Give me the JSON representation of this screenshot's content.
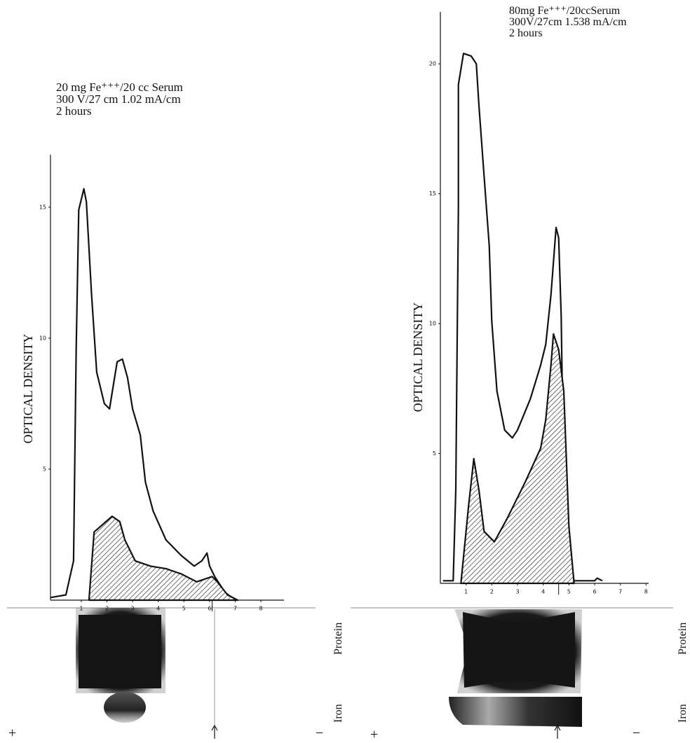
{
  "chart_data": [
    {
      "type": "line",
      "notes": [
        "20 mg Fe⁺⁺⁺/20 cc Serum",
        "300 V/27 cm 1.02 mA/cm",
        "2 hours"
      ],
      "ylabel": "OPTICAL DENSITY",
      "xlim": [
        -0.2,
        8.9
      ],
      "ylim": [
        0,
        17
      ],
      "xticks": [
        1,
        2,
        3,
        4,
        5,
        6,
        7,
        8
      ],
      "yticks": [
        5,
        10,
        15
      ],
      "origin_marker": 6.1,
      "series": [
        {
          "color": "#111111",
          "fill": "none",
          "x": [
            -0.2,
            0.4,
            0.7,
            0.8,
            0.9,
            1.1,
            1.2,
            1.4,
            1.6,
            1.9,
            2.1,
            2.2,
            2.4,
            2.6,
            2.8,
            3.0,
            3.3,
            3.5,
            3.8,
            4.3,
            4.9,
            5.4,
            5.7,
            5.9,
            6.0,
            6.2,
            6.6,
            7.0
          ],
          "values": [
            0.1,
            0.2,
            1.5,
            9.5,
            14.9,
            15.7,
            15.2,
            11.7,
            8.7,
            7.5,
            7.3,
            7.9,
            9.1,
            9.2,
            8.5,
            7.3,
            6.3,
            4.5,
            3.4,
            2.3,
            1.7,
            1.3,
            1.5,
            1.8,
            1.3,
            0.9,
            0.3,
            0.0
          ]
        },
        {
          "color": "#111111",
          "fill": "hatch",
          "x": [
            1.3,
            1.5,
            2.2,
            2.5,
            2.7,
            3.1,
            3.7,
            4.3,
            4.9,
            5.5,
            6.1,
            6.3,
            6.7,
            7.1
          ],
          "values": [
            0,
            2.6,
            3.2,
            3.0,
            2.3,
            1.5,
            1.3,
            1.2,
            1.0,
            0.7,
            0.9,
            0.7,
            0.2,
            0
          ]
        }
      ]
    },
    {
      "type": "line",
      "notes": [
        "80mg Fe⁺⁺⁺/20ccSerum",
        "300V/27cm 1.538 mA/cm",
        "2 hours"
      ],
      "ylabel": "OPTICAL DENSITY",
      "xlim": [
        0,
        8.1
      ],
      "ylim": [
        0,
        22
      ],
      "xticks": [
        1,
        2,
        3,
        4,
        5,
        6,
        7,
        8
      ],
      "yticks": [
        5,
        10,
        15,
        20
      ],
      "origin_marker": 4.6,
      "series": [
        {
          "color": "#111111",
          "fill": "none",
          "x": [
            0.1,
            0.5,
            0.6,
            0.7,
            0.7,
            0.9,
            1.2,
            1.4,
            1.5,
            1.7,
            1.9,
            2.0,
            2.2,
            2.5,
            2.8,
            3.0,
            3.5,
            3.9,
            4.1,
            4.3,
            4.5,
            4.6,
            4.7,
            4.8,
            5.0,
            5.2,
            6.0,
            6.1,
            6.3
          ],
          "values": [
            0.1,
            0.1,
            3.6,
            14.4,
            19.2,
            20.4,
            20.3,
            20.0,
            18.4,
            15.7,
            13.0,
            10.1,
            7.4,
            5.9,
            5.6,
            5.9,
            7.1,
            8.4,
            9.2,
            11.1,
            13.7,
            13.3,
            10.3,
            3.6,
            0.9,
            0.1,
            0.1,
            0.2,
            0.1
          ]
        },
        {
          "color": "#111111",
          "fill": "hatch",
          "x": [
            0.8,
            1.1,
            1.3,
            1.5,
            1.7,
            2.1,
            2.6,
            3.3,
            3.9,
            4.1,
            4.3,
            4.4,
            4.6,
            4.8,
            5.0,
            5.2
          ],
          "values": [
            0,
            3.0,
            4.8,
            3.6,
            2.0,
            1.6,
            2.5,
            3.9,
            5.2,
            6.3,
            8.4,
            9.6,
            9.0,
            7.4,
            2.2,
            0
          ]
        }
      ]
    }
  ],
  "strips": [
    {
      "labels": [
        "Protein",
        "Iron"
      ],
      "anode": "+",
      "cathode": "−"
    },
    {
      "labels": [
        "Protein",
        "Iron"
      ],
      "anode": "+",
      "cathode": "−"
    }
  ]
}
